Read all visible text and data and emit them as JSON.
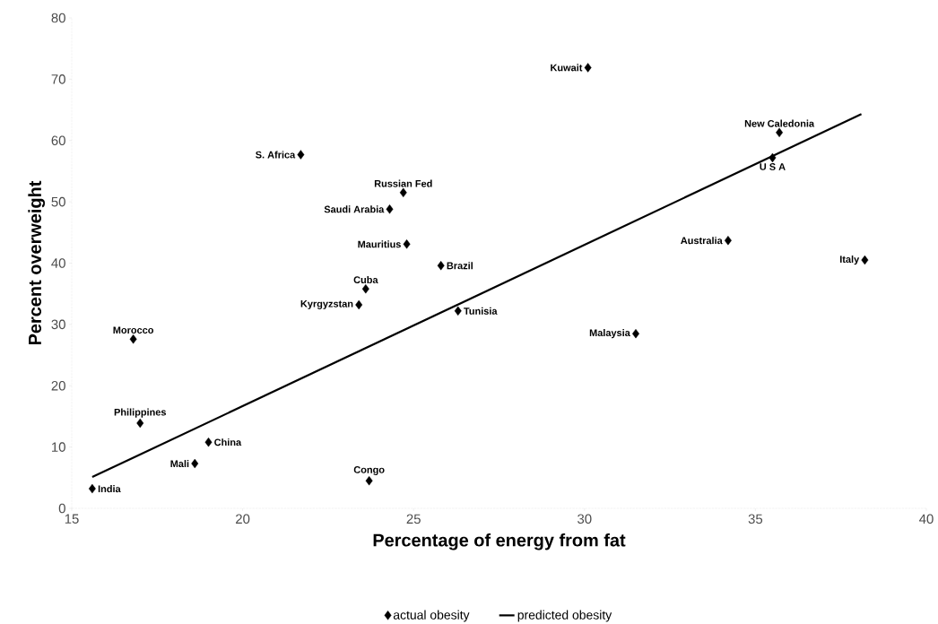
{
  "chart_data": {
    "type": "scatter",
    "xlabel": "Percentage of energy from fat",
    "ylabel": "Percent overweight",
    "xlim": [
      15,
      40
    ],
    "ylim": [
      0,
      80
    ],
    "xticks": [
      15,
      20,
      25,
      30,
      35,
      40
    ],
    "yticks": [
      0,
      10,
      20,
      30,
      40,
      50,
      60,
      70,
      80
    ],
    "grid": false,
    "legend": "bottom",
    "series": [
      {
        "name": "actual obesity",
        "marker": "diamond",
        "color": "#000000",
        "x": [
          15.6,
          16.8,
          17.0,
          18.6,
          19.0,
          23.7,
          23.4,
          23.6,
          21.7,
          24.3,
          24.7,
          24.8,
          25.8,
          26.3,
          30.1,
          31.5,
          34.2,
          35.7,
          35.5,
          38.2
        ],
        "values": [
          3.2,
          27.6,
          13.9,
          7.3,
          10.8,
          4.5,
          33.2,
          35.8,
          57.7,
          48.8,
          51.5,
          43.1,
          39.6,
          32.2,
          71.9,
          28.5,
          43.7,
          61.3,
          57.2,
          40.5
        ]
      },
      {
        "name": "predicted obesity",
        "type": "line",
        "marker": "none",
        "line_style": "solid",
        "color": "#000000",
        "x": [
          15.6,
          38.1
        ],
        "values": [
          5.1,
          64.3
        ]
      }
    ],
    "annotations": [
      {
        "text": "India",
        "x": 15.6,
        "y": 3.2
      },
      {
        "text": "Morocco",
        "x": 16.8,
        "y": 27.6
      },
      {
        "text": "Philippines",
        "x": 17.0,
        "y": 13.9
      },
      {
        "text": "Mali",
        "x": 18.6,
        "y": 7.3
      },
      {
        "text": "China",
        "x": 19.0,
        "y": 10.8
      },
      {
        "text": "Congo",
        "x": 23.7,
        "y": 4.5
      },
      {
        "text": "Kyrgyzstan",
        "x": 23.4,
        "y": 33.2
      },
      {
        "text": "Cuba",
        "x": 23.6,
        "y": 35.8
      },
      {
        "text": "S. Africa",
        "x": 21.7,
        "y": 57.7
      },
      {
        "text": "Saudi Arabia",
        "x": 24.3,
        "y": 48.8
      },
      {
        "text": "Russian Fed",
        "x": 24.7,
        "y": 51.5
      },
      {
        "text": "Mauritius",
        "x": 24.8,
        "y": 43.1
      },
      {
        "text": "Brazil",
        "x": 25.8,
        "y": 39.6
      },
      {
        "text": "Tunisia",
        "x": 26.3,
        "y": 32.2
      },
      {
        "text": "Kuwait",
        "x": 30.1,
        "y": 71.9
      },
      {
        "text": "Malaysia",
        "x": 31.5,
        "y": 28.5
      },
      {
        "text": "Australia",
        "x": 34.2,
        "y": 43.7
      },
      {
        "text": "New Caledonia",
        "x": 35.7,
        "y": 61.3
      },
      {
        "text": "U S A",
        "x": 35.5,
        "y": 57.2
      },
      {
        "text": "Italy",
        "x": 38.2,
        "y": 40.5
      }
    ]
  }
}
